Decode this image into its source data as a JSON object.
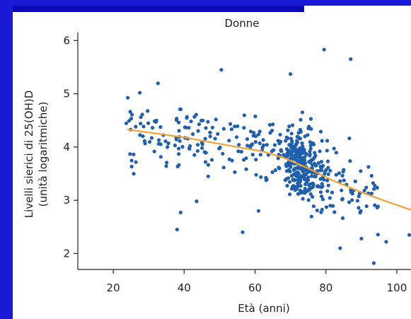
{
  "chart_data": {
    "type": "scatter",
    "title": "Donne",
    "xlabel": "Età (anni)",
    "ylabel_line1": "Livelli sierici di 25(OH)D",
    "ylabel_line2": "(unità logaritmiche)",
    "xlim": [
      10,
      104
    ],
    "ylim": [
      1.7,
      6.15
    ],
    "x_ticks": [
      20,
      40,
      60,
      80,
      100
    ],
    "y_ticks": [
      2,
      3,
      4,
      5,
      6
    ],
    "colors": {
      "points": "#1f5fae",
      "trend": "#f5a033",
      "frame": "#1a1ad6"
    },
    "trend": {
      "x": [
        24,
        40,
        55,
        62,
        68,
        75,
        82,
        90,
        97,
        104
      ],
      "y": [
        4.33,
        4.18,
        4.0,
        3.92,
        3.8,
        3.6,
        3.37,
        3.15,
        2.98,
        2.82
      ]
    },
    "scatter_seed": 20231,
    "scatter_spec": {
      "n_old": 360,
      "n_young": 160,
      "outliers": [
        [
          50.5,
          5.45
        ],
        [
          79.5,
          5.83
        ],
        [
          87,
          5.65
        ],
        [
          70,
          5.37
        ],
        [
          38,
          2.45
        ],
        [
          56.5,
          2.4
        ],
        [
          93.5,
          1.82
        ],
        [
          97,
          2.22
        ],
        [
          103.5,
          2.35
        ],
        [
          39,
          2.77
        ],
        [
          43.5,
          2.98
        ],
        [
          90,
          2.28
        ],
        [
          84,
          2.1
        ],
        [
          61,
          2.8
        ],
        [
          27.5,
          5.02
        ]
      ]
    }
  }
}
